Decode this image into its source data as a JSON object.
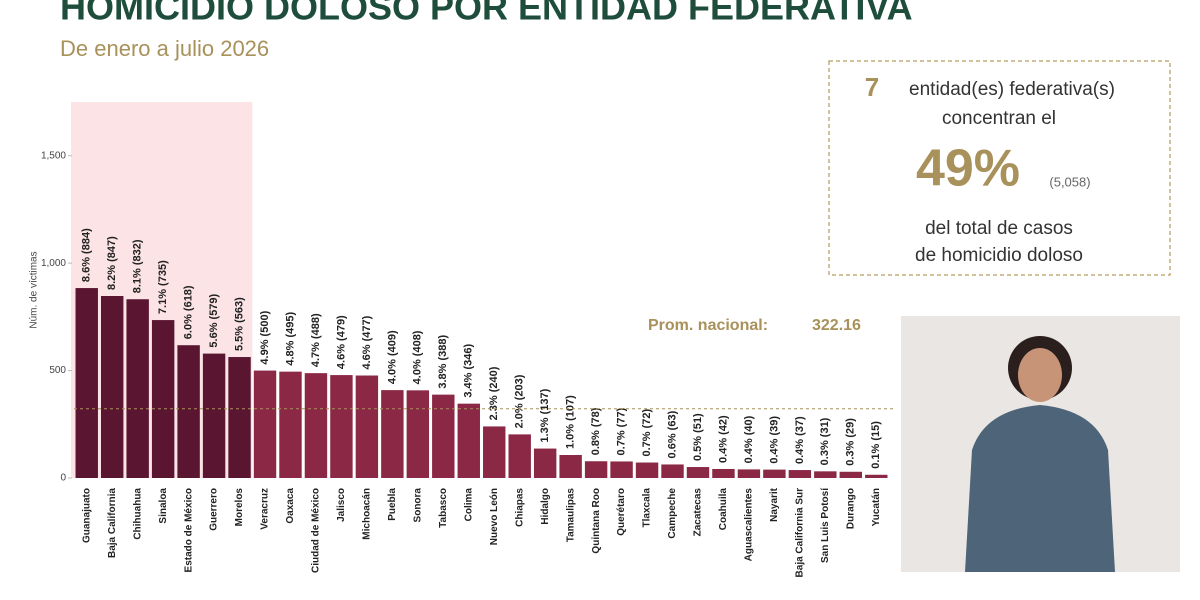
{
  "header": {
    "title": "HOMICIDIO DOLOSO POR ENTIDAD FEDERATIVA",
    "subtitle": "De enero a julio 2026"
  },
  "callout": {
    "count": 7,
    "line1": "entidad(es) federativa(s)",
    "line2": "concentran el",
    "share": "49%",
    "total": "(5,058)",
    "line3": "del total de casos",
    "line4": "de homicidio doloso"
  },
  "chart_data": {
    "type": "bar",
    "y_label": "Núm. de víctimas",
    "categories": [
      "Guanajuato",
      "Baja California",
      "Chihuahua",
      "Sinaloa",
      "Estado de México",
      "Guerrero",
      "Morelos",
      "Veracruz",
      "Oaxaca",
      "Ciudad de México",
      "Jalisco",
      "Michoacán",
      "Puebla",
      "Sonora",
      "Tabasco",
      "Colima",
      "Nuevo León",
      "Chiapas",
      "Hidalgo",
      "Tamaulipas",
      "Quintana Roo",
      "Querétaro",
      "Tlaxcala",
      "Campeche",
      "Zacatecas",
      "Coahuila",
      "Aguascalientes",
      "Nayarit",
      "Baja California Sur",
      "San Luis Potosí",
      "Durango",
      "Yucatán"
    ],
    "values": [
      884,
      847,
      832,
      735,
      618,
      579,
      563,
      500,
      495,
      488,
      479,
      477,
      409,
      408,
      388,
      346,
      240,
      203,
      137,
      107,
      78,
      77,
      72,
      63,
      51,
      42,
      40,
      39,
      37,
      31,
      29,
      15
    ],
    "value_labels": [
      "8.6% (884)",
      "8.2% (847)",
      "8.1% (832)",
      "7.1% (735)",
      "6.0% (618)",
      "5.6% (579)",
      "5.5% (563)",
      "4.9% (500)",
      "4.8% (495)",
      "4.7% (488)",
      "4.6% (479)",
      "4.6% (477)",
      "4.0% (409)",
      "4.0% (408)",
      "3.8% (388)",
      "3.4% (346)",
      "2.3% (240)",
      "2.0% (203)",
      "1.3% (137)",
      "1.0% (107)",
      "0.8% (78)",
      "0.7% (77)",
      "0.7% (72)",
      "0.6% (63)",
      "0.5% (51)",
      "0.4% (42)",
      "0.4% (40)",
      "0.4% (39)",
      "0.4% (37)",
      "0.3% (31)",
      "0.3% (29)",
      "0.1% (15)"
    ],
    "color": "#8a2846",
    "highlight_color": "#5a1530",
    "highlight_background": "#fbe3e6",
    "average_label": "Prom. nacional:",
    "average": 322.16,
    "average_color": "#a8915a",
    "ylim": [
      0,
      1750
    ],
    "yticks": [
      0,
      500,
      {
        "value": 1000,
        "label": "1,000"
      },
      {
        "value": 1500,
        "label": "1,500"
      }
    ]
  }
}
